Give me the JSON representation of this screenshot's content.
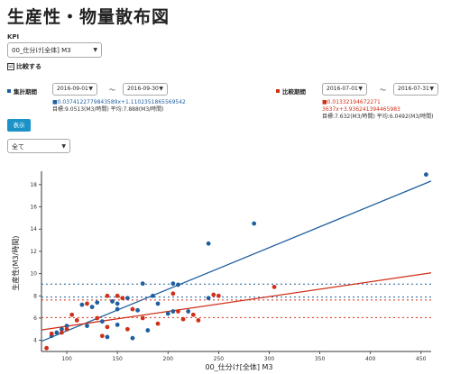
{
  "page": {
    "title": "生産性・物量散布図",
    "kpi_label": "KPI",
    "kpi_value": "00_仕分け[全体] M3",
    "compare_label": "比較する",
    "compare_checked": "☑"
  },
  "period1": {
    "label": "集計期間",
    "color": "#1f5f9e",
    "start": "2016-09-01",
    "end": "2016-09-30",
    "formula": "■0.0374122779843589x+1.1102351865569542",
    "target": "目標:9.0513(M3/時間) 平均:7.888(M3/時間)"
  },
  "period2": {
    "label": "比較期間",
    "color": "#d03018",
    "start": "2016-07-01",
    "end": "2016-07-31",
    "formula": "■0.01332194672271 3637x+3.936241394465983",
    "target": "目標:7.632(M3/時間) 平均:6.0492(M3/時間)"
  },
  "tilde": "〜",
  "show_button": "表示",
  "filter_value": "全て",
  "chart_data": {
    "type": "scatter",
    "xlabel": "00_仕分け[全体] M3",
    "ylabel": "生産性(M3/時間)",
    "xlim": [
      75,
      460
    ],
    "ylim": [
      3,
      19.2
    ],
    "xticks": [
      100,
      150,
      200,
      250,
      300,
      350,
      400,
      450
    ],
    "yticks": [
      4,
      6,
      8,
      10,
      12,
      14,
      16,
      18
    ],
    "series": [
      {
        "name": "集計期間",
        "color": "#1f5f9e",
        "points": [
          [
            455,
            18.9
          ],
          [
            285,
            14.5
          ],
          [
            240,
            12.7
          ],
          [
            175,
            9.1
          ],
          [
            205,
            9.1
          ],
          [
            210,
            9.0
          ],
          [
            240,
            7.8
          ],
          [
            185,
            8.0
          ],
          [
            160,
            7.8
          ],
          [
            145,
            7.5
          ],
          [
            150,
            7.3
          ],
          [
            130,
            7.4
          ],
          [
            125,
            7.0
          ],
          [
            115,
            7.2
          ],
          [
            150,
            6.8
          ],
          [
            170,
            6.7
          ],
          [
            220,
            6.6
          ],
          [
            205,
            6.6
          ],
          [
            200,
            6.4
          ],
          [
            135,
            5.7
          ],
          [
            150,
            5.4
          ],
          [
            120,
            5.3
          ],
          [
            100,
            5.3
          ],
          [
            95,
            5.0
          ],
          [
            90,
            4.7
          ],
          [
            85,
            4.4
          ],
          [
            140,
            4.3
          ],
          [
            165,
            4.2
          ],
          [
            180,
            4.9
          ],
          [
            190,
            7.3
          ]
        ],
        "trend": {
          "slope": 0.0374122779843589,
          "intercept": 1.1102351865569542
        },
        "target": 9.0513,
        "average": 7.888
      },
      {
        "name": "比較期間",
        "color": "#d03018",
        "points": [
          [
            305,
            8.8
          ],
          [
            250,
            8.0
          ],
          [
            205,
            8.2
          ],
          [
            150,
            8.0
          ],
          [
            155,
            7.8
          ],
          [
            140,
            8.0
          ],
          [
            120,
            7.3
          ],
          [
            105,
            6.3
          ],
          [
            110,
            5.8
          ],
          [
            130,
            6.0
          ],
          [
            165,
            6.8
          ],
          [
            175,
            6.0
          ],
          [
            210,
            6.6
          ],
          [
            225,
            6.3
          ],
          [
            215,
            5.9
          ],
          [
            230,
            5.8
          ],
          [
            190,
            5.5
          ],
          [
            160,
            5.0
          ],
          [
            140,
            5.2
          ],
          [
            100,
            5.0
          ],
          [
            95,
            4.7
          ],
          [
            85,
            4.6
          ],
          [
            80,
            3.3
          ],
          [
            135,
            4.4
          ],
          [
            245,
            8.1
          ]
        ],
        "trend": {
          "slope": 0.013321946722713637,
          "intercept": 3.936241394465983
        },
        "target": 7.632,
        "average": 6.0492
      }
    ]
  }
}
